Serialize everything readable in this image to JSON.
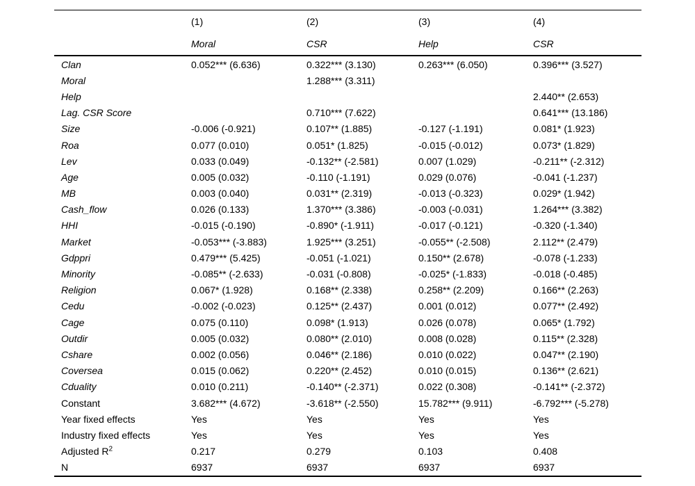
{
  "colors": {
    "background": "#ffffff",
    "text": "#000000",
    "rule": "#000000"
  },
  "table": {
    "columns": [
      "(1)",
      "(2)",
      "(3)",
      "(4)"
    ],
    "dep_vars": [
      "Moral",
      "CSR",
      "Help",
      "CSR"
    ],
    "rows": [
      {
        "label": "Clan",
        "italic": true,
        "values": [
          "0.052*** (6.636)",
          "0.322*** (3.130)",
          "0.263*** (6.050)",
          "0.396*** (3.527)"
        ]
      },
      {
        "label": "Moral",
        "italic": true,
        "values": [
          "",
          "1.288*** (3.311)",
          "",
          ""
        ]
      },
      {
        "label": "Help",
        "italic": true,
        "values": [
          "",
          "",
          "",
          "2.440** (2.653)"
        ]
      },
      {
        "label": "Lag. CSR Score",
        "italic": true,
        "values": [
          "",
          "0.710*** (7.622)",
          "",
          "0.641*** (13.186)"
        ]
      },
      {
        "label": "Size",
        "italic": true,
        "values": [
          "-0.006 (-0.921)",
          "0.107** (1.885)",
          "-0.127 (-1.191)",
          "0.081* (1.923)"
        ]
      },
      {
        "label": "Roa",
        "italic": true,
        "values": [
          "0.077 (0.010)",
          "0.051* (1.825)",
          "-0.015 (-0.012)",
          "0.073* (1.829)"
        ]
      },
      {
        "label": "Lev",
        "italic": true,
        "values": [
          "0.033 (0.049)",
          "-0.132** (-2.581)",
          "0.007 (1.029)",
          "-0.211** (-2.312)"
        ]
      },
      {
        "label": "Age",
        "italic": true,
        "values": [
          "0.005 (0.032)",
          "-0.110 (-1.191)",
          "0.029 (0.076)",
          "-0.041 (-1.237)"
        ]
      },
      {
        "label": "MB",
        "italic": true,
        "values": [
          "0.003 (0.040)",
          "0.031** (2.319)",
          "-0.013 (-0.323)",
          "0.029* (1.942)"
        ]
      },
      {
        "label": "Cash_flow",
        "italic": true,
        "values": [
          "0.026 (0.133)",
          "1.370*** (3.386)",
          "-0.003 (-0.031)",
          "1.264*** (3.382)"
        ]
      },
      {
        "label": "HHI",
        "italic": true,
        "values": [
          "-0.015 (-0.190)",
          "-0.890* (-1.911)",
          "-0.017 (-0.121)",
          "-0.320 (-1.340)"
        ]
      },
      {
        "label": "Market",
        "italic": true,
        "values": [
          "-0.053*** (-3.883)",
          "1.925*** (3.251)",
          "-0.055** (-2.508)",
          "2.112** (2.479)"
        ]
      },
      {
        "label": "Gdppri",
        "italic": true,
        "values": [
          "0.479*** (5.425)",
          "-0.051 (-1.021)",
          "0.150** (2.678)",
          "-0.078 (-1.233)"
        ]
      },
      {
        "label": "Minority",
        "italic": true,
        "values": [
          "-0.085** (-2.633)",
          "-0.031 (-0.808)",
          "-0.025* (-1.833)",
          "-0.018 (-0.485)"
        ]
      },
      {
        "label": "Religion",
        "italic": true,
        "values": [
          "0.067* (1.928)",
          "0.168** (2.338)",
          "0.258** (2.209)",
          "0.166** (2.263)"
        ]
      },
      {
        "label": "Cedu",
        "italic": true,
        "values": [
          "-0.002 (-0.023)",
          "0.125** (2.437)",
          "0.001 (0.012)",
          "0.077** (2.492)"
        ]
      },
      {
        "label": "Cage",
        "italic": true,
        "values": [
          "0.075 (0.110)",
          "0.098* (1.913)",
          "0.026 (0.078)",
          "0.065* (1.792)"
        ]
      },
      {
        "label": "Outdir",
        "italic": true,
        "values": [
          "0.005 (0.032)",
          "0.080** (2.010)",
          "0.008 (0.028)",
          "0.115** (2.328)"
        ]
      },
      {
        "label": "Cshare",
        "italic": true,
        "values": [
          "0.002 (0.056)",
          "0.046** (2.186)",
          "0.010 (0.022)",
          "0.047** (2.190)"
        ]
      },
      {
        "label": "Coversea",
        "italic": true,
        "values": [
          "0.015 (0.062)",
          "0.220** (2.452)",
          "0.010 (0.015)",
          "0.136** (2.621)"
        ]
      },
      {
        "label": "Cduality",
        "italic": true,
        "values": [
          "0.010 (0.211)",
          "-0.140** (-2.371)",
          "0.022 (0.308)",
          "-0.141** (-2.372)"
        ]
      },
      {
        "label": "Constant",
        "italic": false,
        "values": [
          "3.682*** (4.672)",
          "-3.618** (-2.550)",
          "15.782*** (9.911)",
          "-6.792*** (-5.278)"
        ]
      },
      {
        "label": "Year fixed effects",
        "italic": false,
        "values": [
          "Yes",
          "Yes",
          "Yes",
          "Yes"
        ]
      },
      {
        "label": "Industry fixed effects",
        "italic": false,
        "values": [
          "Yes",
          "Yes",
          "Yes",
          "Yes"
        ]
      },
      {
        "label": "Adjusted R",
        "label_sup": "2",
        "italic": false,
        "values": [
          "0.217",
          "0.279",
          "0.103",
          "0.408"
        ]
      },
      {
        "label": "N",
        "italic": false,
        "values": [
          "6937",
          "6937",
          "6937",
          "6937"
        ]
      }
    ]
  }
}
